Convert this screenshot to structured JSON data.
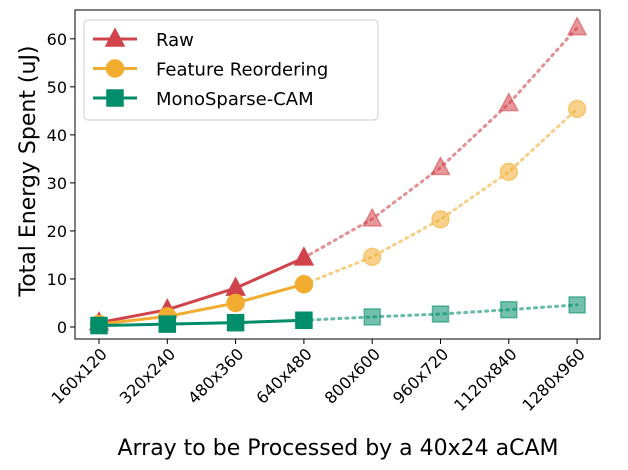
{
  "chart_data": {
    "type": "line",
    "xlabel": "Array to be Processed by a 40x24 aCAM",
    "ylabel": "Total Energy Spent (uJ)",
    "categories": [
      "160x120",
      "320x240",
      "480x360",
      "640x480",
      "800x600",
      "960x720",
      "1120x840",
      "1280x960"
    ],
    "ylim": [
      -2.5,
      66
    ],
    "yticks": [
      0,
      10,
      20,
      30,
      40,
      50,
      60
    ],
    "grid": false,
    "legend_position": "top-left",
    "measured_points": 4,
    "series": [
      {
        "name": "Raw",
        "color": "#d1434b",
        "marker": "triangle",
        "values": [
          0.9,
          3.6,
          8.1,
          14.4,
          22.5,
          33.2,
          46.5,
          62.3
        ]
      },
      {
        "name": "Feature Reordering",
        "color": "#f2ad30",
        "marker": "circle",
        "values": [
          0.6,
          2.2,
          5.0,
          8.9,
          14.6,
          22.4,
          32.3,
          45.4
        ]
      },
      {
        "name": "MonoSparse-CAM",
        "color": "#008e6a",
        "marker": "square",
        "values": [
          0.3,
          0.6,
          0.9,
          1.4,
          2.1,
          2.7,
          3.6,
          4.6
        ]
      }
    ]
  }
}
